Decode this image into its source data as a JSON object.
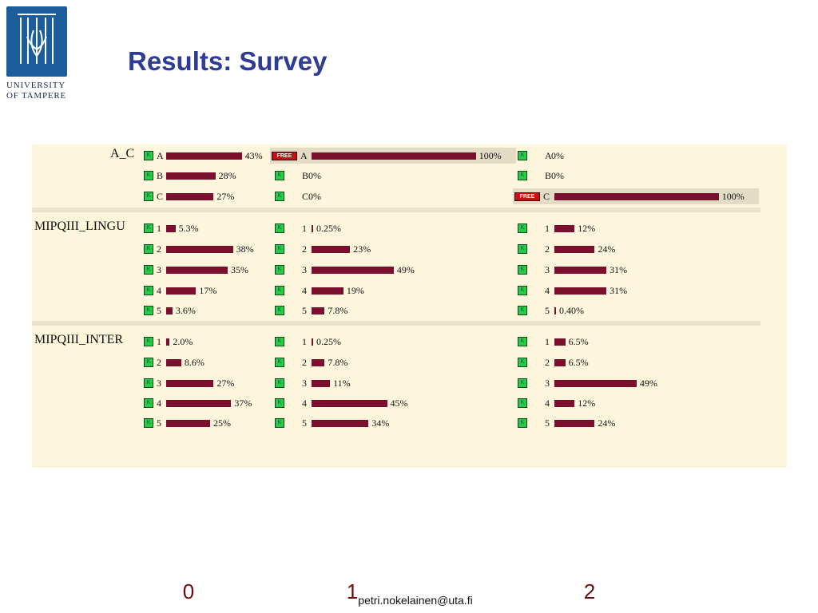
{
  "logo": {
    "line1": "UNIVERSITY",
    "line2": "OF TAMPERE"
  },
  "title": "Results: Survey",
  "footer": "petri.nokelainen@uta.fi",
  "colors": {
    "bar": "#7a0f2e",
    "panel": "#fdf6dd",
    "title": "#2f3c97",
    "check": "#2ac94a",
    "free": "#c01414"
  },
  "chart_data": {
    "type": "bar",
    "columns": [
      "0",
      "1",
      "2"
    ],
    "free_label": "FREE",
    "check_label": "K",
    "questions": [
      {
        "label": "A_C",
        "options": [
          "A",
          "B",
          "C"
        ],
        "free_option": [
          null,
          0,
          2
        ],
        "values": [
          [
            43,
            28,
            27
          ],
          [
            100,
            0,
            0
          ],
          [
            0,
            0,
            100
          ]
        ],
        "labels": [
          [
            "43%",
            "28%",
            "27%"
          ],
          [
            "100%",
            "0%",
            "0%"
          ],
          [
            "0%",
            "0%",
            "100%"
          ]
        ]
      },
      {
        "label": "MIPQIII_LINGU",
        "options": [
          "1",
          "2",
          "3",
          "4",
          "5"
        ],
        "values": [
          [
            5.3,
            38,
            35,
            17,
            3.6
          ],
          [
            0.25,
            23,
            49,
            19,
            7.8
          ],
          [
            12,
            24,
            31,
            31,
            0.4
          ]
        ],
        "labels": [
          [
            "5.3%",
            "38%",
            "35%",
            "17%",
            "3.6%"
          ],
          [
            "0.25%",
            "23%",
            "49%",
            "19%",
            "7.8%"
          ],
          [
            "12%",
            "24%",
            "31%",
            "31%",
            "0.40%"
          ]
        ]
      },
      {
        "label": "MIPQIII_INTER",
        "options": [
          "1",
          "2",
          "3",
          "4",
          "5"
        ],
        "values": [
          [
            2.0,
            8.6,
            27,
            37,
            25
          ],
          [
            0.25,
            7.8,
            11,
            45,
            34
          ],
          [
            6.5,
            6.5,
            49,
            12,
            24
          ]
        ],
        "labels": [
          [
            "2.0%",
            "8.6%",
            "27%",
            "37%",
            "25%"
          ],
          [
            "0.25%",
            "7.8%",
            "11%",
            "45%",
            "34%"
          ],
          [
            "6.5%",
            "6.5%",
            "49%",
            "12%",
            "24%"
          ]
        ]
      }
    ]
  }
}
